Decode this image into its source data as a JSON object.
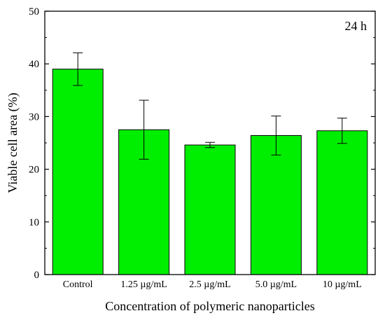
{
  "chart_data": {
    "type": "bar",
    "title": "",
    "annotation": "24 h",
    "xlabel": "Concentration of polymeric nanoparticles",
    "ylabel": "Viable cell area (%)",
    "ylim": [
      0,
      50
    ],
    "yticks": [
      0,
      10,
      20,
      30,
      40,
      50
    ],
    "y_tick_labels": [
      "0",
      "10",
      "20",
      "30",
      "40",
      "50"
    ],
    "categories": [
      "Control",
      "1.25 µg/mL",
      "2.5 µg/mL",
      "5.0 µg/mL",
      "10 µg/mL"
    ],
    "values": [
      39.0,
      27.5,
      24.6,
      26.4,
      27.3
    ],
    "errors": [
      3.1,
      5.6,
      0.5,
      3.7,
      2.4
    ],
    "grid": false,
    "legend": "none",
    "colors": {
      "bar_fill": "#00ee00",
      "bar_stroke": "#000000",
      "error_bar": "#000000",
      "axis": "#000000"
    }
  }
}
